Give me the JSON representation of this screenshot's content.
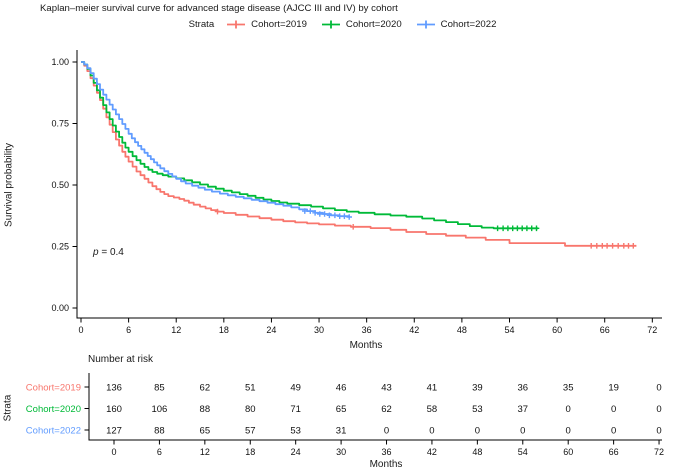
{
  "chart_data": {
    "type": "line",
    "subtype": "kaplan-meier-step-curve",
    "title": "Kaplan–meier survival curve for advanced stage disease (AJCC III and IV) by cohort",
    "legend_title": "Strata",
    "legend_position": "top",
    "xlabel": "Months",
    "ylabel": "Survival probability",
    "xlim": [
      0,
      72
    ],
    "ylim": [
      0,
      1
    ],
    "x_ticks": [
      0,
      6,
      12,
      18,
      24,
      30,
      36,
      42,
      48,
      54,
      60,
      66,
      72
    ],
    "y_ticks": [
      {
        "value": 0.0,
        "label": "0.00"
      },
      {
        "value": 0.25,
        "label": "0.25"
      },
      {
        "value": 0.5,
        "label": "0.50"
      },
      {
        "value": 0.75,
        "label": "0.75"
      },
      {
        "value": 1.0,
        "label": "1.00"
      }
    ],
    "annotation": {
      "symbol": "p",
      "text": " = 0.4"
    },
    "series": [
      {
        "name": "Cohort=2019",
        "color": "#F8766D",
        "points": [
          [
            0,
            1
          ],
          [
            0.4,
            0.985
          ],
          [
            0.8,
            0.963
          ],
          [
            1.2,
            0.934
          ],
          [
            1.6,
            0.904
          ],
          [
            2,
            0.875
          ],
          [
            2.4,
            0.845
          ],
          [
            2.8,
            0.81
          ],
          [
            3.2,
            0.775
          ],
          [
            3.6,
            0.745
          ],
          [
            4,
            0.715
          ],
          [
            4.4,
            0.685
          ],
          [
            4.8,
            0.66
          ],
          [
            5.2,
            0.635
          ],
          [
            5.6,
            0.615
          ],
          [
            6,
            0.595
          ],
          [
            6.5,
            0.575
          ],
          [
            7,
            0.555
          ],
          [
            7.5,
            0.54
          ],
          [
            8,
            0.525
          ],
          [
            8.5,
            0.51
          ],
          [
            9,
            0.495
          ],
          [
            9.5,
            0.483
          ],
          [
            10,
            0.472
          ],
          [
            10.5,
            0.463
          ],
          [
            11,
            0.455
          ],
          [
            11.7,
            0.449
          ],
          [
            12.4,
            0.443
          ],
          [
            13,
            0.436
          ],
          [
            13.6,
            0.428
          ],
          [
            14.2,
            0.42
          ],
          [
            15,
            0.412
          ],
          [
            15.7,
            0.405
          ],
          [
            16.4,
            0.398
          ],
          [
            17.2,
            0.392
          ],
          [
            18,
            0.386
          ],
          [
            19.5,
            0.379
          ],
          [
            21,
            0.372
          ],
          [
            22.5,
            0.365
          ],
          [
            24,
            0.359
          ],
          [
            25.5,
            0.353
          ],
          [
            27,
            0.348
          ],
          [
            28.5,
            0.344
          ],
          [
            30,
            0.34
          ],
          [
            32,
            0.335
          ],
          [
            34,
            0.33
          ],
          [
            36.5,
            0.325
          ],
          [
            39,
            0.318
          ],
          [
            41,
            0.309
          ],
          [
            43.5,
            0.301
          ],
          [
            46,
            0.294
          ],
          [
            48.5,
            0.286
          ],
          [
            51,
            0.277
          ],
          [
            54,
            0.264
          ],
          [
            61,
            0.253
          ],
          [
            70,
            0.253
          ]
        ],
        "censor_marks": [
          [
            17.2,
            0.392
          ],
          [
            34.3,
            0.33
          ],
          [
            64.3,
            0.253
          ],
          [
            65,
            0.253
          ],
          [
            65.7,
            0.253
          ],
          [
            66.3,
            0.253
          ],
          [
            67,
            0.253
          ],
          [
            67.7,
            0.253
          ],
          [
            68.4,
            0.253
          ],
          [
            69,
            0.253
          ],
          [
            69.6,
            0.253
          ]
        ]
      },
      {
        "name": "Cohort=2020",
        "color": "#00BA38",
        "points": [
          [
            0,
            1
          ],
          [
            0.4,
            0.99
          ],
          [
            0.8,
            0.972
          ],
          [
            1.2,
            0.945
          ],
          [
            1.6,
            0.915
          ],
          [
            2,
            0.885
          ],
          [
            2.4,
            0.855
          ],
          [
            2.8,
            0.825
          ],
          [
            3.2,
            0.795
          ],
          [
            3.6,
            0.768
          ],
          [
            4,
            0.742
          ],
          [
            4.4,
            0.717
          ],
          [
            4.8,
            0.695
          ],
          [
            5.2,
            0.672
          ],
          [
            5.6,
            0.652
          ],
          [
            6,
            0.635
          ],
          [
            6.5,
            0.617
          ],
          [
            7,
            0.601
          ],
          [
            7.5,
            0.586
          ],
          [
            8,
            0.573
          ],
          [
            8.5,
            0.562
          ],
          [
            9,
            0.553
          ],
          [
            9.6,
            0.546
          ],
          [
            10.3,
            0.54
          ],
          [
            11,
            0.534
          ],
          [
            12,
            0.527
          ],
          [
            13,
            0.519
          ],
          [
            14,
            0.511
          ],
          [
            15,
            0.502
          ],
          [
            16,
            0.493
          ],
          [
            17,
            0.485
          ],
          [
            18,
            0.477
          ],
          [
            19,
            0.47
          ],
          [
            20,
            0.463
          ],
          [
            21,
            0.456
          ],
          [
            22,
            0.448
          ],
          [
            23,
            0.441
          ],
          [
            24,
            0.435
          ],
          [
            25,
            0.429
          ],
          [
            26,
            0.424
          ],
          [
            27.5,
            0.418
          ],
          [
            29,
            0.412
          ],
          [
            30.5,
            0.405
          ],
          [
            32,
            0.398
          ],
          [
            33.5,
            0.392
          ],
          [
            35,
            0.387
          ],
          [
            37,
            0.381
          ],
          [
            39,
            0.376
          ],
          [
            41,
            0.371
          ],
          [
            43,
            0.364
          ],
          [
            44.5,
            0.356
          ],
          [
            46,
            0.349
          ],
          [
            47.5,
            0.341
          ],
          [
            49,
            0.333
          ],
          [
            50.5,
            0.327
          ],
          [
            52,
            0.324
          ],
          [
            57.6,
            0.324
          ]
        ],
        "censor_marks": [
          [
            52.5,
            0.324
          ],
          [
            53.2,
            0.324
          ],
          [
            53.8,
            0.324
          ],
          [
            54.4,
            0.324
          ],
          [
            55,
            0.324
          ],
          [
            55.6,
            0.324
          ],
          [
            56.2,
            0.324
          ],
          [
            56.8,
            0.324
          ],
          [
            57.4,
            0.324
          ]
        ]
      },
      {
        "name": "Cohort=2022",
        "color": "#619CFF",
        "points": [
          [
            0,
            1
          ],
          [
            0.4,
            0.99
          ],
          [
            0.8,
            0.975
          ],
          [
            1.2,
            0.955
          ],
          [
            1.6,
            0.932
          ],
          [
            2,
            0.91
          ],
          [
            2.4,
            0.888
          ],
          [
            2.8,
            0.867
          ],
          [
            3.2,
            0.847
          ],
          [
            3.6,
            0.827
          ],
          [
            4,
            0.807
          ],
          [
            4.4,
            0.787
          ],
          [
            4.8,
            0.768
          ],
          [
            5.2,
            0.748
          ],
          [
            5.6,
            0.728
          ],
          [
            6,
            0.708
          ],
          [
            6.4,
            0.69
          ],
          [
            6.8,
            0.674
          ],
          [
            7.2,
            0.659
          ],
          [
            7.6,
            0.645
          ],
          [
            8,
            0.631
          ],
          [
            8.4,
            0.618
          ],
          [
            8.8,
            0.605
          ],
          [
            9.2,
            0.592
          ],
          [
            9.6,
            0.58
          ],
          [
            10,
            0.568
          ],
          [
            10.5,
            0.556
          ],
          [
            11,
            0.545
          ],
          [
            11.5,
            0.535
          ],
          [
            12,
            0.525
          ],
          [
            12.6,
            0.515
          ],
          [
            13.2,
            0.506
          ],
          [
            14,
            0.497
          ],
          [
            14.8,
            0.489
          ],
          [
            15.6,
            0.481
          ],
          [
            16.5,
            0.473
          ],
          [
            17.5,
            0.465
          ],
          [
            18.5,
            0.458
          ],
          [
            19.5,
            0.452
          ],
          [
            20.5,
            0.446
          ],
          [
            21.5,
            0.44
          ],
          [
            22.5,
            0.434
          ],
          [
            23.5,
            0.428
          ],
          [
            24.5,
            0.422
          ],
          [
            25.5,
            0.416
          ],
          [
            26.5,
            0.409
          ],
          [
            27.5,
            0.401
          ],
          [
            28.5,
            0.394
          ],
          [
            29.5,
            0.387
          ],
          [
            30.5,
            0.382
          ],
          [
            31.5,
            0.377
          ],
          [
            32.5,
            0.373
          ],
          [
            33.8,
            0.37
          ]
        ],
        "censor_marks": [
          [
            28.2,
            0.394
          ],
          [
            28.9,
            0.394
          ],
          [
            29.5,
            0.387
          ],
          [
            30.1,
            0.382
          ],
          [
            30.7,
            0.382
          ],
          [
            31.3,
            0.377
          ],
          [
            32,
            0.377
          ],
          [
            32.6,
            0.373
          ],
          [
            33.2,
            0.373
          ],
          [
            33.8,
            0.37
          ]
        ]
      }
    ],
    "risk_table": {
      "title": "Number at risk",
      "axis_label": "Strata",
      "xlabel": "Months",
      "months": [
        0,
        6,
        12,
        18,
        24,
        30,
        36,
        42,
        48,
        54,
        60,
        66,
        72
      ],
      "rows": [
        {
          "label": "Cohort=2019",
          "color": "#F8766D",
          "values": [
            136,
            85,
            62,
            51,
            49,
            46,
            43,
            41,
            39,
            36,
            35,
            19,
            0
          ]
        },
        {
          "label": "Cohort=2020",
          "color": "#00BA38",
          "values": [
            160,
            106,
            88,
            80,
            71,
            65,
            62,
            58,
            53,
            37,
            0,
            0,
            0
          ]
        },
        {
          "label": "Cohort=2022",
          "color": "#619CFF",
          "values": [
            127,
            88,
            65,
            57,
            53,
            31,
            0,
            0,
            0,
            0,
            0,
            0,
            0
          ]
        }
      ]
    }
  }
}
